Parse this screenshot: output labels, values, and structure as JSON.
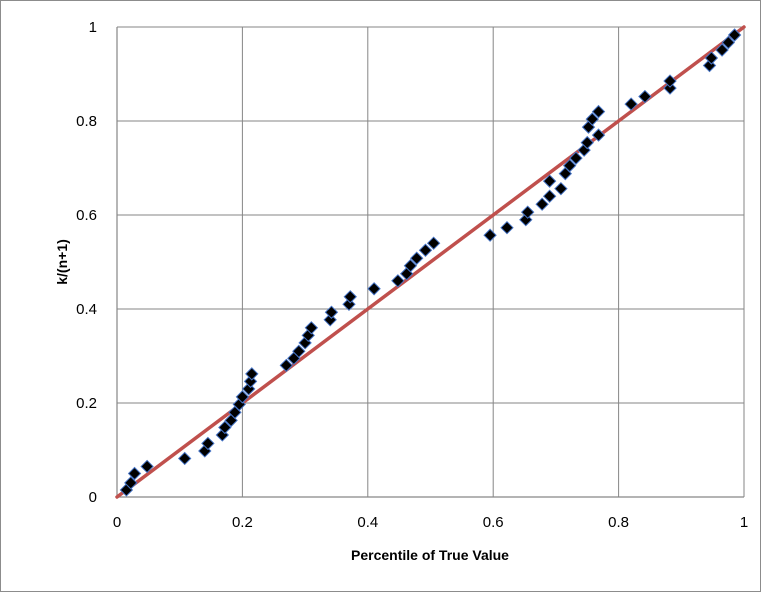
{
  "chart_data": {
    "type": "scatter",
    "title": "",
    "xlabel": "Percentile of True Value",
    "ylabel": "k/(n+1)",
    "xlim": [
      0,
      1
    ],
    "ylim": [
      0,
      1
    ],
    "x_ticks": [
      "0",
      "0.2",
      "0.4",
      "0.6",
      "0.8",
      "1"
    ],
    "y_ticks": [
      "0",
      "0.2",
      "0.4",
      "0.6",
      "0.8",
      "1"
    ],
    "grid": true,
    "legend": "none",
    "marker": "diamond",
    "marker_color": "#000000",
    "marker_edge_color": "#4472c4",
    "reference_line": {
      "x": [
        0,
        1
      ],
      "y": [
        0,
        1
      ],
      "color": "#c0504d"
    },
    "points": [
      [
        0.015,
        0.015
      ],
      [
        0.022,
        0.03
      ],
      [
        0.028,
        0.05
      ],
      [
        0.048,
        0.065
      ],
      [
        0.108,
        0.082
      ],
      [
        0.14,
        0.098
      ],
      [
        0.145,
        0.114
      ],
      [
        0.168,
        0.132
      ],
      [
        0.172,
        0.148
      ],
      [
        0.182,
        0.163
      ],
      [
        0.188,
        0.18
      ],
      [
        0.195,
        0.197
      ],
      [
        0.2,
        0.213
      ],
      [
        0.21,
        0.23
      ],
      [
        0.213,
        0.246
      ],
      [
        0.215,
        0.262
      ],
      [
        0.27,
        0.28
      ],
      [
        0.282,
        0.295
      ],
      [
        0.29,
        0.31
      ],
      [
        0.3,
        0.328
      ],
      [
        0.305,
        0.344
      ],
      [
        0.31,
        0.36
      ],
      [
        0.34,
        0.377
      ],
      [
        0.342,
        0.393
      ],
      [
        0.37,
        0.41
      ],
      [
        0.372,
        0.426
      ],
      [
        0.41,
        0.443
      ],
      [
        0.448,
        0.46
      ],
      [
        0.462,
        0.475
      ],
      [
        0.468,
        0.492
      ],
      [
        0.478,
        0.508
      ],
      [
        0.492,
        0.525
      ],
      [
        0.505,
        0.54
      ],
      [
        0.595,
        0.557
      ],
      [
        0.622,
        0.573
      ],
      [
        0.652,
        0.59
      ],
      [
        0.655,
        0.606
      ],
      [
        0.678,
        0.623
      ],
      [
        0.69,
        0.64
      ],
      [
        0.69,
        0.672
      ],
      [
        0.708,
        0.656
      ],
      [
        0.715,
        0.688
      ],
      [
        0.722,
        0.705
      ],
      [
        0.732,
        0.721
      ],
      [
        0.745,
        0.738
      ],
      [
        0.75,
        0.754
      ],
      [
        0.752,
        0.787
      ],
      [
        0.758,
        0.804
      ],
      [
        0.768,
        0.82
      ],
      [
        0.768,
        0.77
      ],
      [
        0.82,
        0.836
      ],
      [
        0.842,
        0.852
      ],
      [
        0.882,
        0.87
      ],
      [
        0.882,
        0.885
      ],
      [
        0.945,
        0.918
      ],
      [
        0.948,
        0.934
      ],
      [
        0.965,
        0.951
      ],
      [
        0.975,
        0.967
      ],
      [
        0.985,
        0.983
      ]
    ]
  }
}
